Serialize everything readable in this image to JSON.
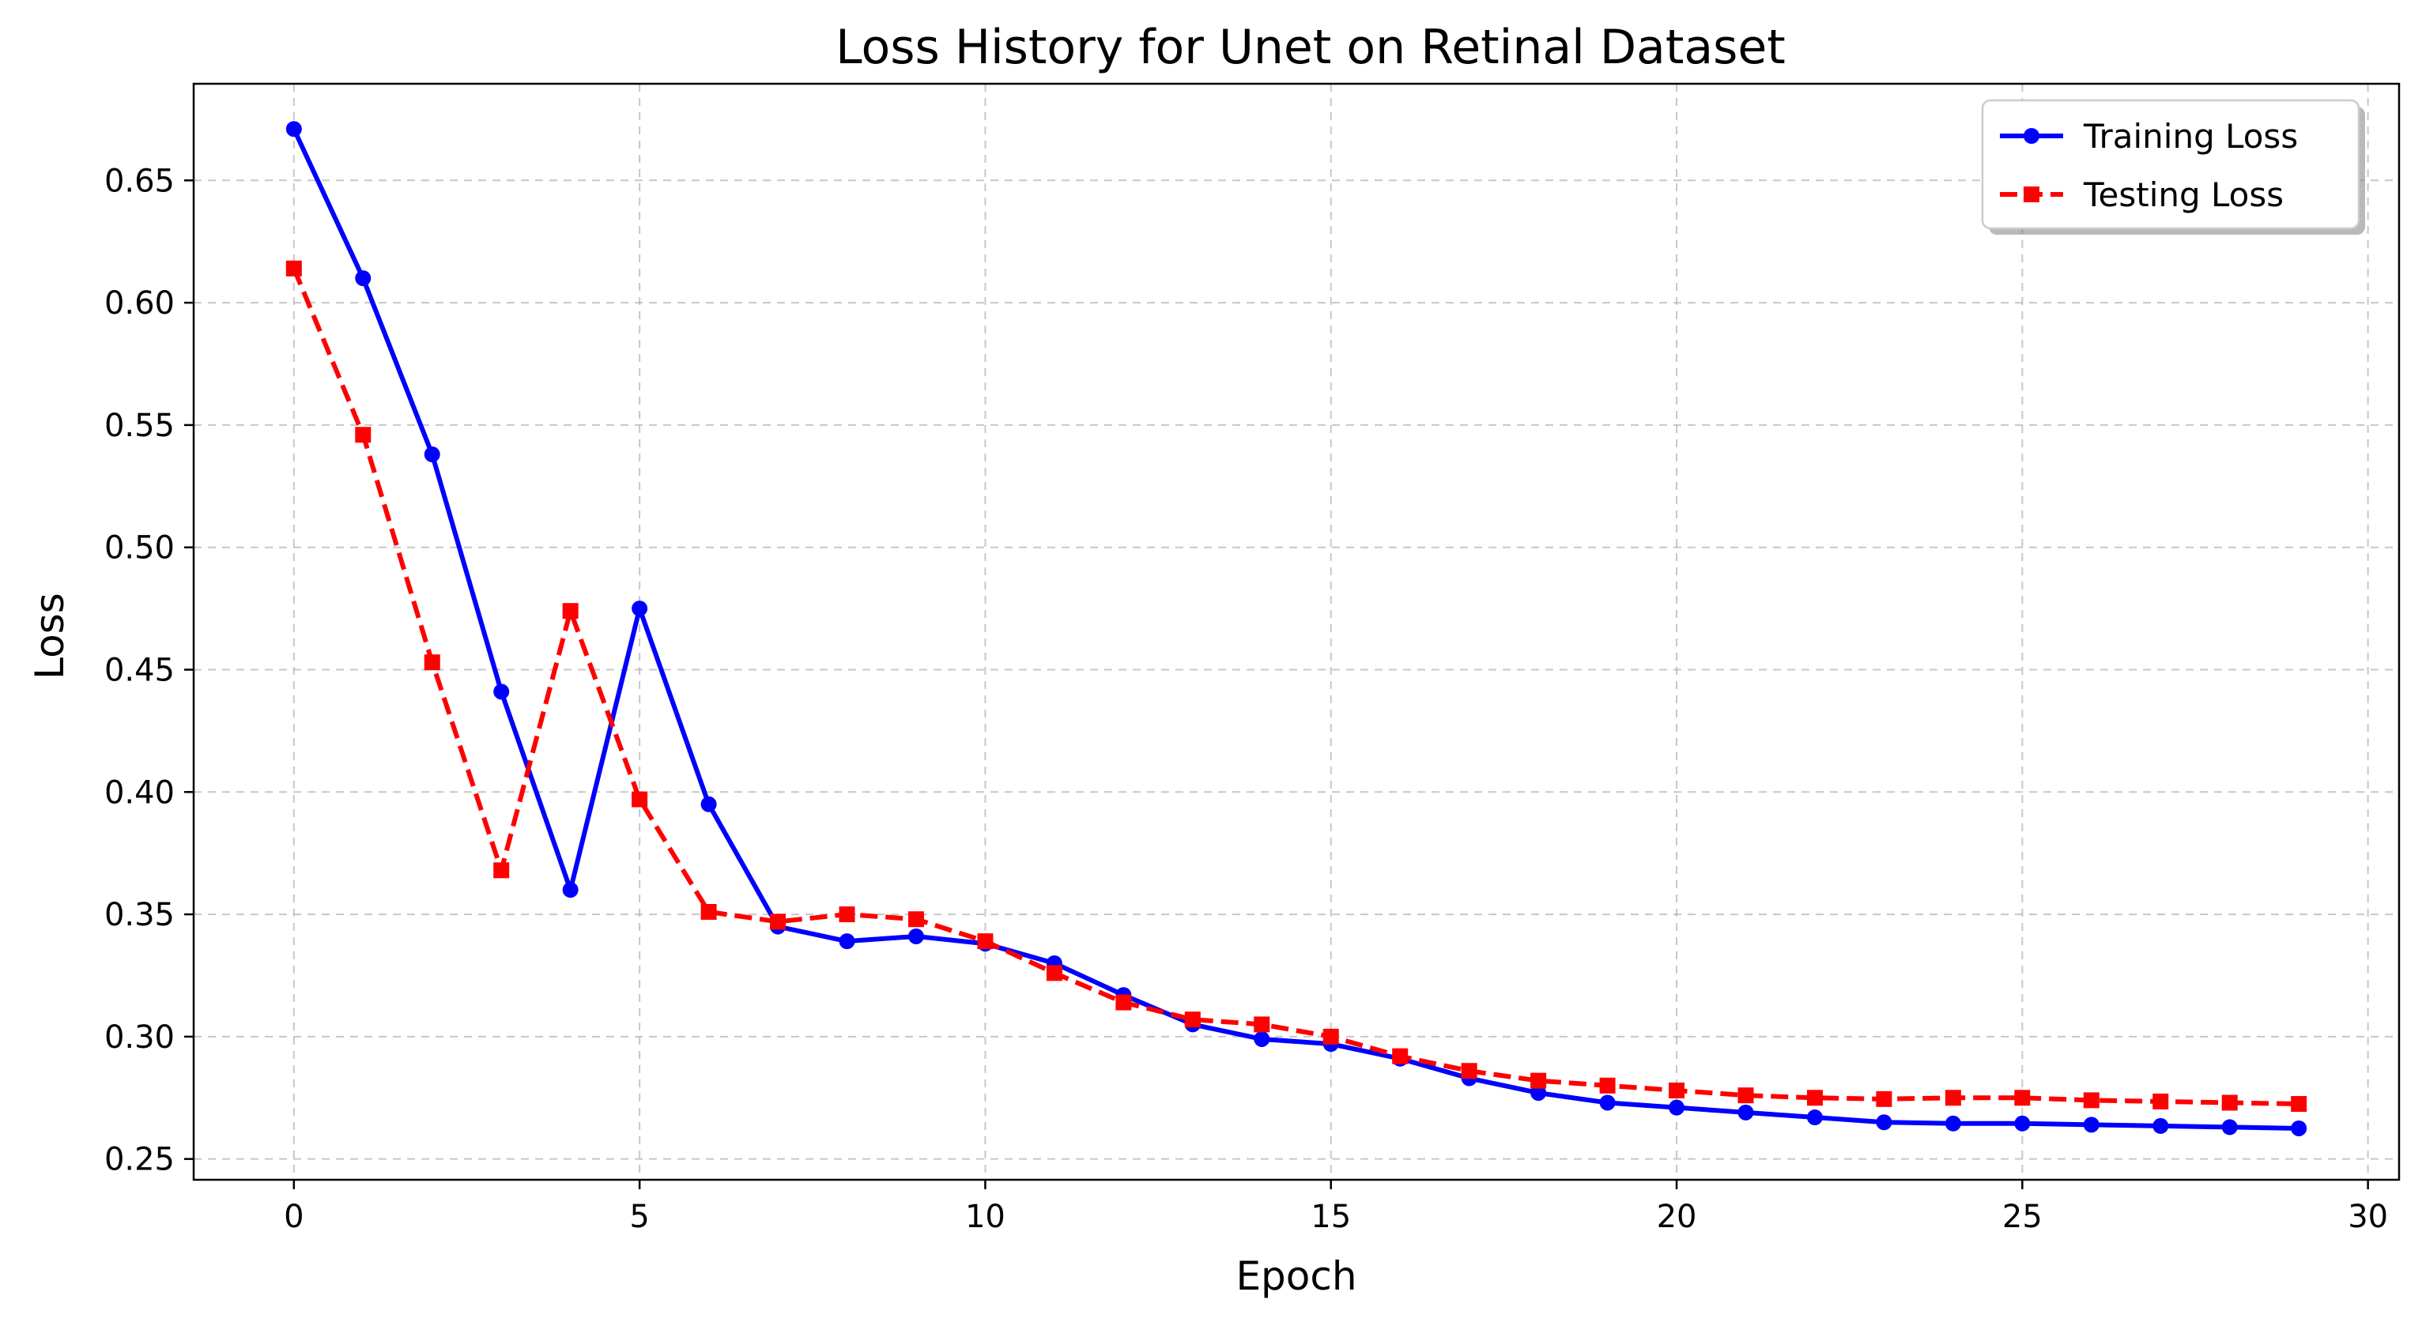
{
  "chart_data": {
    "type": "line",
    "title": "Loss History for Unet on Retinal Dataset",
    "xlabel": "Epoch",
    "ylabel": "Loss",
    "xlim": [
      -1.45,
      30.45
    ],
    "ylim": [
      0.2415,
      0.6895
    ],
    "xticks": [
      0,
      5,
      10,
      15,
      20,
      25,
      30
    ],
    "yticks": [
      0.25,
      0.3,
      0.35,
      0.4,
      0.45,
      0.5,
      0.55,
      0.6,
      0.65
    ],
    "xtick_labels": [
      "0",
      "5",
      "10",
      "15",
      "20",
      "25",
      "30"
    ],
    "ytick_labels": [
      "0.25",
      "0.30",
      "0.35",
      "0.40",
      "0.45",
      "0.50",
      "0.55",
      "0.60",
      "0.65"
    ],
    "grid": true,
    "legend_position": "top-right",
    "x": [
      0,
      1,
      2,
      3,
      4,
      5,
      6,
      7,
      8,
      9,
      10,
      11,
      12,
      13,
      14,
      15,
      16,
      17,
      18,
      19,
      20,
      21,
      22,
      23,
      24,
      25,
      26,
      27,
      28,
      29
    ],
    "series": [
      {
        "name": "Training Loss",
        "color": "#0000ff",
        "line_style": "solid",
        "marker": "circle",
        "values": [
          0.671,
          0.61,
          0.538,
          0.441,
          0.36,
          0.475,
          0.395,
          0.345,
          0.339,
          0.341,
          0.338,
          0.33,
          0.317,
          0.305,
          0.299,
          0.297,
          0.291,
          0.283,
          0.277,
          0.273,
          0.271,
          0.269,
          0.267,
          0.265,
          0.2645,
          0.2645,
          0.264,
          0.2635,
          0.263,
          0.2625
        ]
      },
      {
        "name": "Testing Loss",
        "color": "#ff0000",
        "line_style": "dashed",
        "marker": "square",
        "values": [
          0.614,
          0.546,
          0.453,
          0.368,
          0.474,
          0.397,
          0.351,
          0.347,
          0.35,
          0.348,
          0.339,
          0.326,
          0.314,
          0.307,
          0.305,
          0.3,
          0.292,
          0.286,
          0.282,
          0.28,
          0.278,
          0.276,
          0.275,
          0.2745,
          0.275,
          0.275,
          0.274,
          0.2735,
          0.273,
          0.2725
        ]
      }
    ]
  }
}
